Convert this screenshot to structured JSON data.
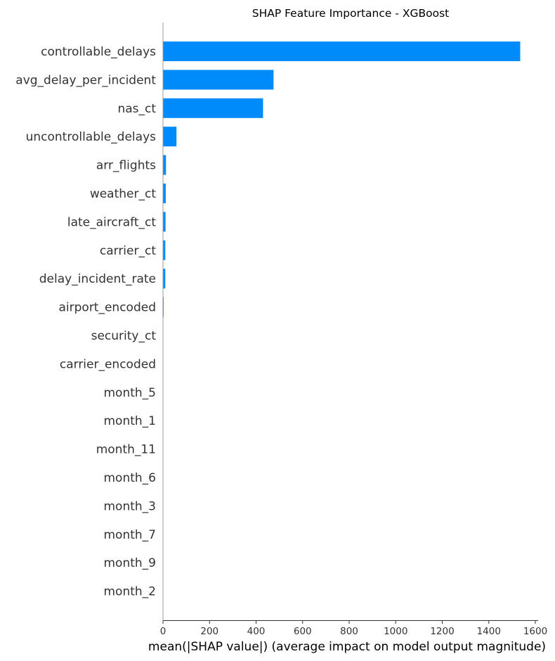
{
  "chart_data": {
    "type": "bar",
    "orientation": "horizontal",
    "title": "SHAP Feature Importance - XGBoost",
    "xlabel": "mean(|SHAP value|) (average impact on model output magnitude)",
    "ylabel": "",
    "xlim": [
      0,
      1600
    ],
    "xticks": [
      "0",
      "200",
      "400",
      "600",
      "800",
      "1000",
      "1200",
      "1400",
      "1600"
    ],
    "grid": false,
    "bar_color": "#008bfb",
    "categories": [
      "controllable_delays",
      "avg_delay_per_incident",
      "nas_ct",
      "uncontrollable_delays",
      "arr_flights",
      "weather_ct",
      "late_aircraft_ct",
      "carrier_ct",
      "delay_incident_rate",
      "airport_encoded",
      "security_ct",
      "carrier_encoded",
      "month_5",
      "month_1",
      "month_11",
      "month_6",
      "month_3",
      "month_7",
      "month_9",
      "month_2"
    ],
    "values": [
      1535,
      475,
      430,
      58,
      13,
      12,
      11,
      10,
      10,
      3,
      0.5,
      0.4,
      0.2,
      0.2,
      0.1,
      0.1,
      0.1,
      0.1,
      0.1,
      0.1
    ]
  }
}
